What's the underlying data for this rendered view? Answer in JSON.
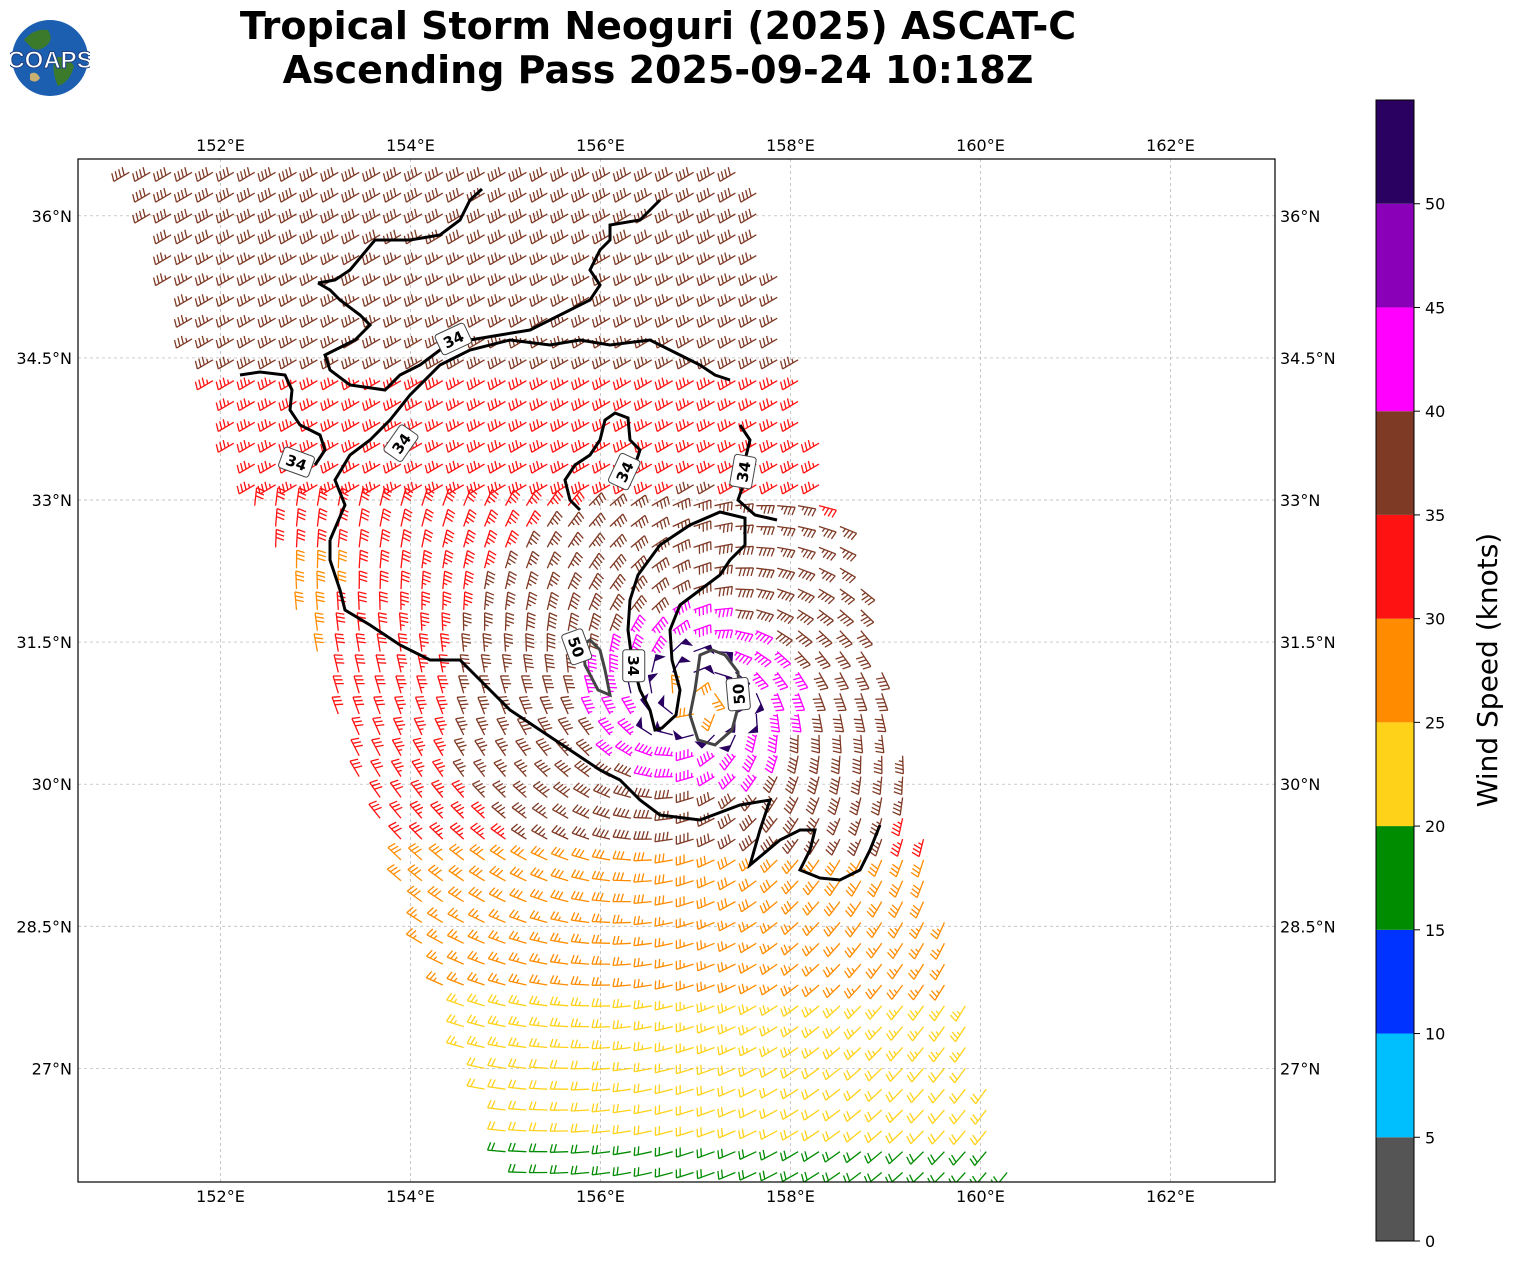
{
  "header": {
    "title_line1": "Tropical Storm Neoguri (2025) ASCAT-C",
    "title_line2": "Ascending Pass 2025-09-24 10:18Z",
    "logo_text": "COAPS"
  },
  "map": {
    "lon_range": [
      150.5,
      163.1
    ],
    "lat_range": [
      25.8,
      36.6
    ],
    "lon_ticks": [
      {
        "value": 152,
        "label": "152°E"
      },
      {
        "value": 154,
        "label": "154°E"
      },
      {
        "value": 156,
        "label": "156°E"
      },
      {
        "value": 158,
        "label": "158°E"
      },
      {
        "value": 160,
        "label": "160°E"
      },
      {
        "value": 162,
        "label": "162°E"
      }
    ],
    "lat_ticks": [
      {
        "value": 36,
        "label": "36°N"
      },
      {
        "value": 34.5,
        "label": "34.5°N"
      },
      {
        "value": 33,
        "label": "33°N"
      },
      {
        "value": 31.5,
        "label": "31.5°N"
      },
      {
        "value": 30,
        "label": "30°N"
      },
      {
        "value": 28.5,
        "label": "28.5°N"
      },
      {
        "value": 27,
        "label": "27°N"
      }
    ],
    "gridlines": true,
    "storm_center": [
      157.0,
      30.9
    ],
    "contour_labels": [
      {
        "text": "34",
        "lon": 154.45,
        "lat": 34.7,
        "angle": -25
      },
      {
        "text": "34",
        "lon": 152.8,
        "lat": 33.4,
        "angle": 20
      },
      {
        "text": "34",
        "lon": 153.9,
        "lat": 33.6,
        "angle": -55
      },
      {
        "text": "34",
        "lon": 156.25,
        "lat": 33.3,
        "angle": -65
      },
      {
        "text": "34",
        "lon": 157.5,
        "lat": 33.3,
        "angle": -80
      },
      {
        "text": "34",
        "lon": 156.35,
        "lat": 31.25,
        "angle": 90
      },
      {
        "text": "50",
        "lon": 155.75,
        "lat": 31.45,
        "angle": 70
      },
      {
        "text": "50",
        "lon": 157.45,
        "lat": 30.95,
        "angle": -95
      }
    ]
  },
  "colorbar": {
    "label": "Wind Speed (knots)",
    "tick_labels": [
      "0",
      "5",
      "10",
      "15",
      "20",
      "25",
      "30",
      "35",
      "40",
      "45",
      "50"
    ],
    "bins": [
      {
        "min": 0,
        "max": 5,
        "color": "#555555"
      },
      {
        "min": 5,
        "max": 10,
        "color": "#00bfff"
      },
      {
        "min": 10,
        "max": 15,
        "color": "#0033ff"
      },
      {
        "min": 15,
        "max": 20,
        "color": "#008c00"
      },
      {
        "min": 20,
        "max": 25,
        "color": "#ffd21a"
      },
      {
        "min": 25,
        "max": 30,
        "color": "#ff8c00"
      },
      {
        "min": 30,
        "max": 35,
        "color": "#ff1212"
      },
      {
        "min": 35,
        "max": 40,
        "color": "#7f3a26"
      },
      {
        "min": 40,
        "max": 45,
        "color": "#ff00ff"
      },
      {
        "min": 45,
        "max": 50,
        "color": "#8a00b8"
      },
      {
        "min": 50,
        "max": 55,
        "color": "#2a0060"
      }
    ]
  }
}
